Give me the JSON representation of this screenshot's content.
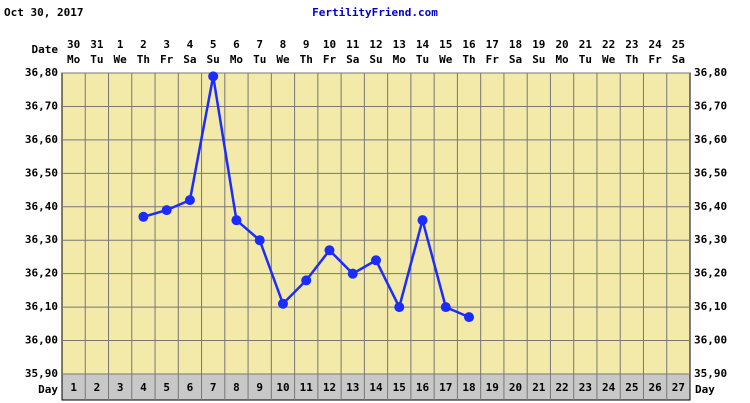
{
  "header": {
    "date": "Oct 30, 2017",
    "site": "FertilityFriend.com"
  },
  "chart_data": {
    "type": "line",
    "date_label": "Date",
    "day_label": "Day",
    "categories": [
      1,
      2,
      3,
      4,
      5,
      6,
      7,
      8,
      9,
      10,
      11,
      12,
      13,
      14,
      15,
      16,
      17,
      18,
      19,
      20,
      21,
      22,
      23,
      24,
      25,
      26,
      27
    ],
    "dates": [
      30,
      31,
      1,
      2,
      3,
      4,
      5,
      6,
      7,
      8,
      9,
      10,
      11,
      12,
      13,
      14,
      15,
      16,
      17,
      18,
      19,
      20,
      21,
      22,
      23,
      24,
      25
    ],
    "weekdays": [
      "Mo",
      "Tu",
      "We",
      "Th",
      "Fr",
      "Sa",
      "Su",
      "Mo",
      "Tu",
      "We",
      "Th",
      "Fr",
      "Sa",
      "Su",
      "Mo",
      "Tu",
      "We",
      "Th",
      "Fr",
      "Sa",
      "Su",
      "Mo",
      "Tu",
      "We",
      "Th",
      "Fr",
      "Sa"
    ],
    "series": [
      {
        "color": "#1a2cff",
        "values": [
          null,
          null,
          null,
          36.37,
          36.39,
          36.42,
          36.79,
          36.36,
          36.3,
          36.11,
          36.18,
          36.27,
          36.2,
          36.24,
          36.1,
          36.36,
          36.1,
          36.07,
          null,
          null,
          null,
          null,
          null,
          null,
          null,
          null,
          null
        ]
      }
    ],
    "ylim": [
      35.9,
      36.8
    ],
    "yticks": [
      {
        "value": 35.9,
        "label": "35,90"
      },
      {
        "value": 36.0,
        "label": "36,00"
      },
      {
        "value": 36.1,
        "label": "36,10"
      },
      {
        "value": 36.2,
        "label": "36,20"
      },
      {
        "value": 36.3,
        "label": "36,30"
      },
      {
        "value": 36.4,
        "label": "36,40"
      },
      {
        "value": 36.5,
        "label": "36,50"
      },
      {
        "value": 36.6,
        "label": "36,60"
      },
      {
        "value": 36.7,
        "label": "36,70"
      },
      {
        "value": 36.8,
        "label": "36,80"
      }
    ],
    "grid": true
  }
}
